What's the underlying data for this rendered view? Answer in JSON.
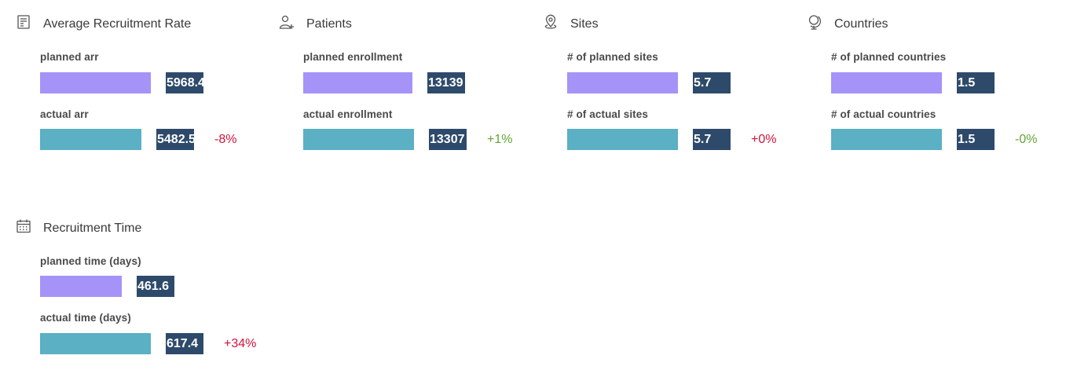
{
  "cards": [
    {
      "title": "Average Recruitment Rate",
      "icon": "report-icon",
      "planned_label": "planned arr",
      "planned_value": "5968.4",
      "planned_fraction": 0.97,
      "actual_label": "actual arr",
      "actual_value": "5482.5",
      "actual_fraction": 0.89,
      "delta": "-8%",
      "delta_color": "#d1133c"
    },
    {
      "title": "Patients",
      "icon": "user-add-icon",
      "planned_label": "planned enrollment",
      "planned_value": "13139",
      "planned_fraction": 0.96,
      "actual_label": "actual enrollment",
      "actual_value": "13307",
      "actual_fraction": 0.97,
      "delta": "+1%",
      "delta_color": "#63a435"
    },
    {
      "title": "Sites",
      "icon": "location-pin-icon",
      "planned_label": "# of planned sites",
      "planned_value": "5.7",
      "planned_fraction": 0.97,
      "actual_label": "# of actual sites",
      "actual_value": "5.7",
      "actual_fraction": 0.97,
      "delta": "+0%",
      "delta_color": "#d1133c"
    },
    {
      "title": "Countries",
      "icon": "globe-icon",
      "planned_label": "# of planned countries",
      "planned_value": "1.5",
      "planned_fraction": 0.97,
      "actual_label": "# of actual countries",
      "actual_value": "1.5",
      "actual_fraction": 0.97,
      "delta": "-0%",
      "delta_color": "#63a435"
    },
    {
      "title": "Recruitment Time",
      "icon": "calendar-icon",
      "planned_label": "planned time (days)",
      "planned_value": "461.6",
      "planned_fraction": 0.72,
      "actual_label": "actual time (days)",
      "actual_value": "617.4",
      "actual_fraction": 0.97,
      "delta": "+34%",
      "delta_color": "#d1133c"
    }
  ],
  "colors": {
    "planned_bar": "#a593f8",
    "actual_bar": "#5bb0c3",
    "value_box": "#2e4a6b"
  }
}
